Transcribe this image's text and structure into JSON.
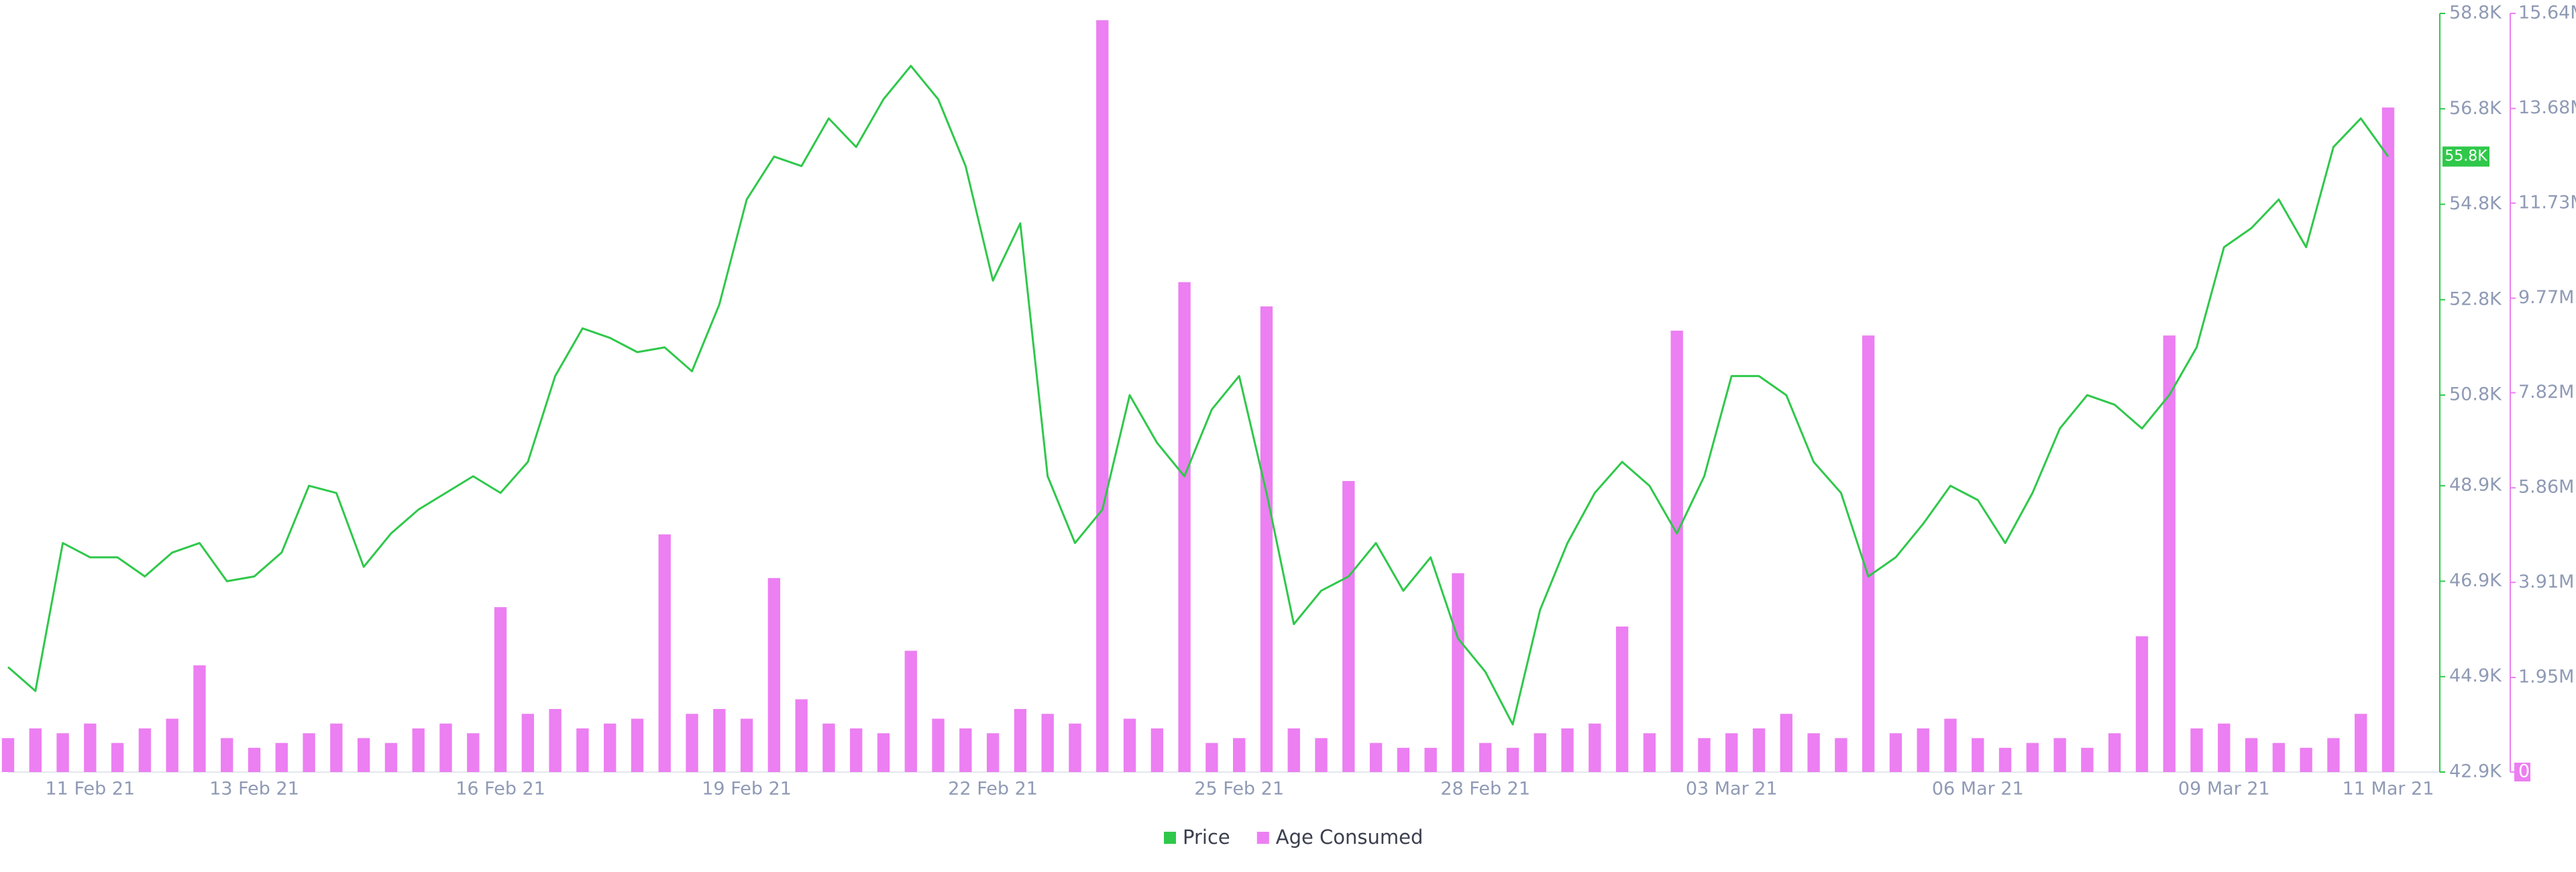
{
  "chart_data": {
    "type": "combo",
    "current_price_label": "55.8K",
    "categories": [
      null,
      null,
      null,
      "11 Feb 21",
      null,
      null,
      null,
      null,
      null,
      "13 Feb 21",
      null,
      null,
      null,
      null,
      null,
      null,
      null,
      null,
      "16 Feb 21",
      null,
      null,
      null,
      null,
      null,
      null,
      null,
      null,
      "19 Feb 21",
      null,
      null,
      null,
      null,
      null,
      null,
      null,
      null,
      "22 Feb 21",
      null,
      null,
      null,
      null,
      null,
      null,
      null,
      null,
      "25 Feb 21",
      null,
      null,
      null,
      null,
      null,
      null,
      null,
      null,
      "28 Feb 21",
      null,
      null,
      null,
      null,
      null,
      null,
      null,
      null,
      "03 Mar 21",
      null,
      null,
      null,
      null,
      null,
      null,
      null,
      null,
      "06 Mar 21",
      null,
      null,
      null,
      null,
      null,
      null,
      null,
      null,
      "09 Mar 21",
      null,
      null,
      null,
      null,
      null,
      "11 Mar 21"
    ],
    "series": [
      {
        "name": "Price",
        "type": "line",
        "color": "#2fc84a",
        "values": [
          45100,
          44600,
          47700,
          47400,
          47400,
          47000,
          47500,
          47700,
          46900,
          47000,
          47500,
          48900,
          48750,
          47200,
          47900,
          48400,
          48750,
          49100,
          48750,
          49400,
          51200,
          52200,
          52000,
          51700,
          51800,
          51300,
          52700,
          54900,
          55800,
          55600,
          56600,
          56000,
          57000,
          57700,
          57000,
          55600,
          53200,
          54400,
          49100,
          47700,
          48400,
          50800,
          49800,
          49100,
          50500,
          51200,
          48750,
          46000,
          46700,
          47000,
          47700,
          46700,
          47400,
          45700,
          45000,
          43900,
          46300,
          47700,
          48750,
          49400,
          48900,
          47900,
          49100,
          51200,
          51200,
          50800,
          49400,
          48750,
          47000,
          47400,
          48100,
          48900,
          48600,
          47700,
          48750,
          50100,
          50800,
          50600,
          50100,
          50800,
          51800,
          53900,
          54300,
          54900,
          53900,
          56000,
          56600,
          55800
        ]
      },
      {
        "name": "Age Consumed",
        "type": "bar",
        "axis": "y2",
        "color": "#ec7ff2",
        "values": [
          700000,
          900000,
          800000,
          1000000,
          600000,
          900000,
          1100000,
          2200000,
          700000,
          500000,
          600000,
          800000,
          1000000,
          700000,
          600000,
          900000,
          1000000,
          800000,
          3400000,
          1200000,
          1300000,
          900000,
          1000000,
          1100000,
          4900000,
          1200000,
          1300000,
          1100000,
          4000000,
          1500000,
          1000000,
          900000,
          800000,
          2500000,
          1100000,
          900000,
          800000,
          1300000,
          1200000,
          1000000,
          15500000,
          1100000,
          900000,
          10100000,
          600000,
          700000,
          9600000,
          900000,
          700000,
          6000000,
          600000,
          500000,
          500000,
          4100000,
          600000,
          500000,
          800000,
          900000,
          1000000,
          3000000,
          800000,
          9100000,
          700000,
          800000,
          900000,
          1200000,
          800000,
          700000,
          9000000,
          800000,
          900000,
          1100000,
          700000,
          500000,
          600000,
          700000,
          500000,
          800000,
          2800000,
          9000000,
          900000,
          1000000,
          700000,
          600000,
          500000,
          700000,
          1200000,
          13700000
        ]
      }
    ],
    "ylim": [
      42900,
      58800
    ],
    "yticks": [
      {
        "value": 42900,
        "label": "42.9K"
      },
      {
        "value": 44900,
        "label": "44.9K"
      },
      {
        "value": 46900,
        "label": "46.9K"
      },
      {
        "value": 48900,
        "label": "48.9K"
      },
      {
        "value": 50800,
        "label": "50.8K"
      },
      {
        "value": 52800,
        "label": "52.8K"
      },
      {
        "value": 54800,
        "label": "54.8K"
      },
      {
        "value": 56800,
        "label": "56.8K"
      },
      {
        "value": 58800,
        "label": "58.8K"
      }
    ],
    "y2lim": [
      0,
      15640000
    ],
    "y2ticks": [
      0,
      {
        "value": 1950000,
        "label": "1.95M"
      },
      {
        "value": 3910000,
        "label": "3.91M"
      },
      {
        "value": 5860000,
        "label": "5.86M"
      },
      {
        "value": 7820000,
        "label": "7.82M"
      },
      {
        "value": 9770000,
        "label": "9.77M"
      },
      {
        "value": 11730000,
        "label": "11.73M"
      },
      {
        "value": 13680000,
        "label": "13.68M"
      },
      {
        "value": 15640000,
        "label": "15.64M"
      }
    ]
  }
}
